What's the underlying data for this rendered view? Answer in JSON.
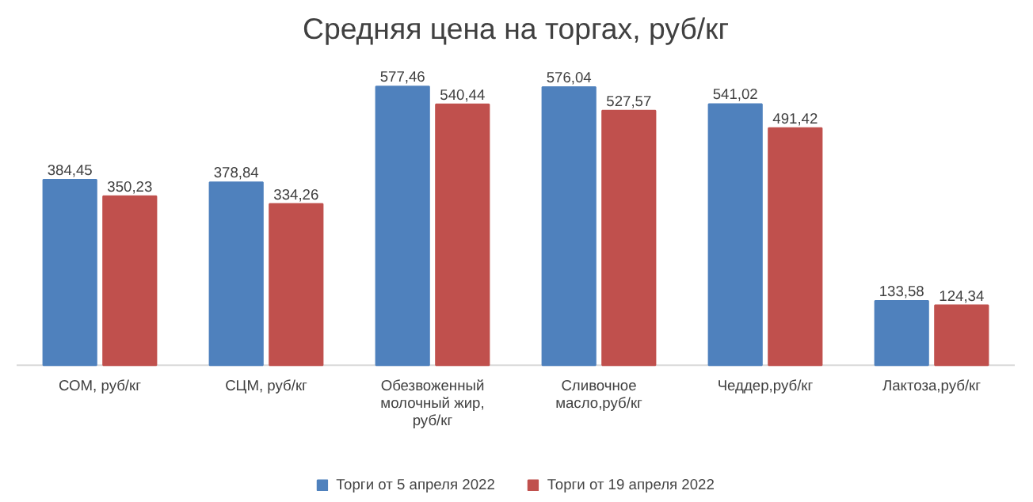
{
  "chart_data": {
    "type": "bar",
    "title": "Средняя цена на торгах, руб/кг",
    "categories": [
      "СОМ, руб/кг",
      "СЦМ, руб/кг",
      "Обезвоженный молочный жир, руб/кг",
      "Сливочное масло,руб/кг",
      "Чеддер,руб/кг",
      "Лактоза,руб/кг"
    ],
    "series": [
      {
        "name": "Торги от 5 апреля 2022",
        "color": "#4f81bd",
        "values": [
          384.45,
          378.84,
          577.46,
          576.04,
          541.02,
          133.58
        ],
        "value_labels": [
          "384,45",
          "378,84",
          "577,46",
          "576,04",
          "541,02",
          "133,58"
        ]
      },
      {
        "name": "Торги от 19 апреля 2022",
        "color": "#c0504d",
        "values": [
          350.23,
          334.26,
          540.44,
          527.57,
          491.42,
          124.34
        ],
        "value_labels": [
          "350,23",
          "334,26",
          "540,44",
          "527,57",
          "491,42",
          "124,34"
        ]
      }
    ],
    "legend": "bottom"
  }
}
